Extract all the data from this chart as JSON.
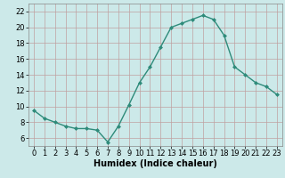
{
  "x": [
    0,
    1,
    2,
    3,
    4,
    5,
    6,
    7,
    8,
    9,
    10,
    11,
    12,
    13,
    14,
    15,
    16,
    17,
    18,
    19,
    20,
    21,
    22,
    23
  ],
  "y": [
    9.5,
    8.5,
    8.0,
    7.5,
    7.2,
    7.2,
    7.0,
    5.5,
    7.5,
    10.2,
    13.0,
    15.0,
    17.5,
    20.0,
    20.5,
    21.0,
    21.5,
    21.0,
    19.0,
    15.0,
    14.0,
    13.0,
    12.5,
    11.5
  ],
  "line_color": "#2e8b7a",
  "marker": "D",
  "marker_size": 2,
  "bg_color": "#cce9e9",
  "grid_color": "#c0a0a0",
  "xlabel": "Humidex (Indice chaleur)",
  "xlabel_fontsize": 7,
  "tick_fontsize": 6,
  "xlim": [
    -0.5,
    23.5
  ],
  "ylim": [
    5,
    23
  ],
  "yticks": [
    6,
    8,
    10,
    12,
    14,
    16,
    18,
    20,
    22
  ],
  "xticks": [
    0,
    1,
    2,
    3,
    4,
    5,
    6,
    7,
    8,
    9,
    10,
    11,
    12,
    13,
    14,
    15,
    16,
    17,
    18,
    19,
    20,
    21,
    22,
    23
  ]
}
